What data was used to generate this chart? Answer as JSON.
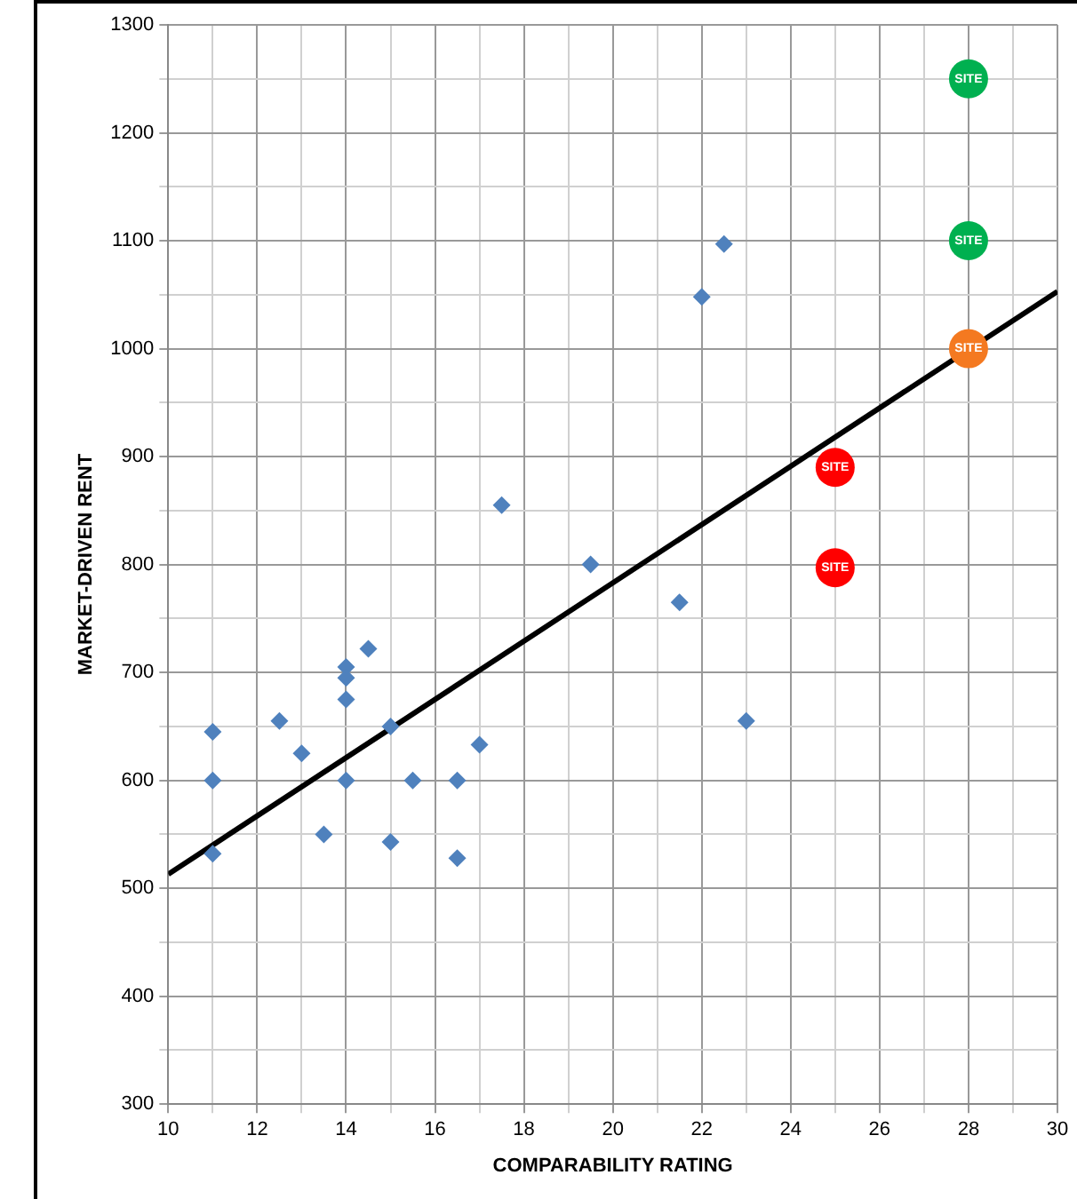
{
  "chart_data": {
    "type": "scatter",
    "xlabel": "COMPARABILITY RATING",
    "ylabel": "MARKET-DRIVEN RENT",
    "xlim": [
      10,
      30
    ],
    "ylim": [
      300,
      1300
    ],
    "xticks": [
      10,
      {
        "value": 11,
        "label": null
      },
      12,
      {
        "value": 13,
        "label": null
      },
      14,
      {
        "value": 15,
        "label": null
      },
      16,
      {
        "value": 17,
        "label": null
      },
      18,
      {
        "value": 19,
        "label": null
      },
      20,
      {
        "value": 21,
        "label": null
      },
      22,
      {
        "value": 23,
        "label": null
      },
      24,
      {
        "value": 25,
        "label": null
      },
      26,
      {
        "value": 27,
        "label": null
      },
      28,
      {
        "value": 29,
        "label": null
      },
      30
    ],
    "yticks": [
      300,
      {
        "value": 350,
        "label": null
      },
      400,
      {
        "value": 450,
        "label": null
      },
      500,
      {
        "value": 550,
        "label": null
      },
      600,
      {
        "value": 650,
        "label": null
      },
      700,
      {
        "value": 750,
        "label": null
      },
      800,
      {
        "value": 850,
        "label": null
      },
      900,
      {
        "value": 950,
        "label": null
      },
      1000,
      {
        "value": 1050,
        "label": null
      },
      1100,
      {
        "value": 1150,
        "label": null
      },
      1200,
      {
        "value": 1250,
        "label": null
      },
      1300
    ],
    "grid": true,
    "legend": false,
    "series": [
      {
        "type": "scatter",
        "marker": "diamond",
        "color": "#4f81bd",
        "x": [
          11,
          11,
          11,
          12.5,
          13,
          13.5,
          14,
          14,
          14,
          14,
          14.5,
          15,
          15,
          15.5,
          16.5,
          16.5,
          17,
          17.5,
          19.5,
          21.5,
          22,
          22.5,
          23
        ],
        "values": [
          645,
          600,
          532,
          655,
          625,
          550,
          705,
          695,
          675,
          600,
          722,
          650,
          543,
          600,
          600,
          528,
          633,
          855,
          800,
          765,
          1048,
          1097,
          655
        ]
      },
      {
        "type": "scatter",
        "marker": "circle",
        "x": [
          25,
          25,
          28,
          28,
          28
        ],
        "values": [
          890,
          797,
          1000,
          1100,
          1250
        ],
        "value_labels": [
          "SITE",
          "SITE",
          "SITE",
          "SITE",
          "SITE"
        ],
        "colors": [
          "#ff0000",
          "#ff0000",
          "#f47920",
          "#00b050",
          "#00b050"
        ]
      },
      {
        "type": "line",
        "marker": "none",
        "line_style": "solid",
        "color": "#000000",
        "x": [
          10,
          30
        ],
        "values": [
          513,
          1053
        ]
      }
    ]
  }
}
